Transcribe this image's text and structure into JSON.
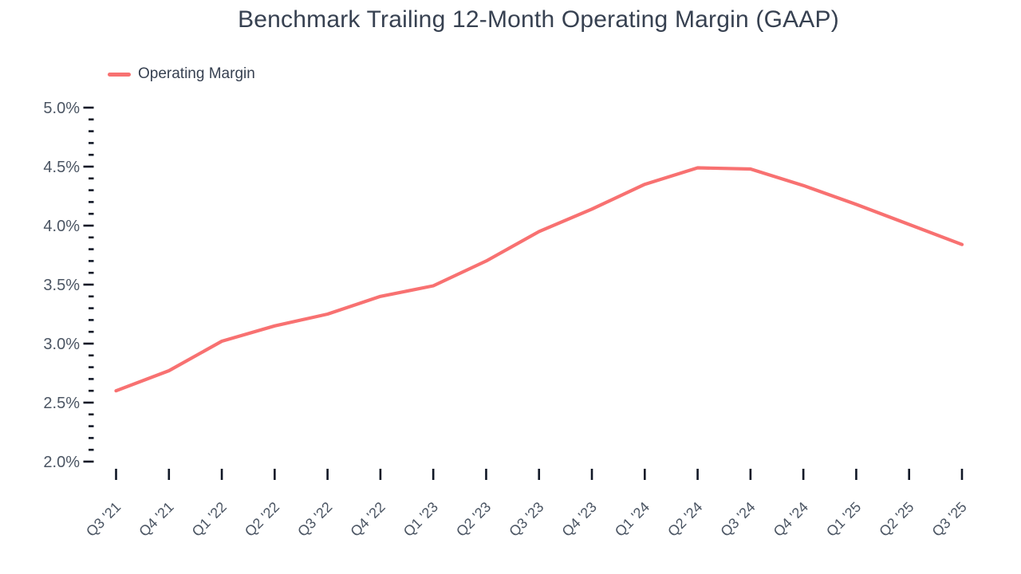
{
  "chart_data": {
    "type": "line",
    "title": "Benchmark Trailing 12-Month Operating Margin (GAAP)",
    "legend_position": "top-left",
    "grid": false,
    "categories": [
      "Q3 '21",
      "Q4 '21",
      "Q1 '22",
      "Q2 '22",
      "Q3 '22",
      "Q4 '22",
      "Q1 '23",
      "Q2 '23",
      "Q3 '23",
      "Q4 '23",
      "Q1 '24",
      "Q2 '24",
      "Q3 '24",
      "Q4 '24",
      "Q1 '25",
      "Q2 '25",
      "Q3 '25"
    ],
    "series": [
      {
        "name": "Operating Margin",
        "values": [
          2.6,
          2.77,
          3.02,
          3.15,
          3.25,
          3.4,
          3.49,
          3.7,
          3.95,
          4.14,
          4.35,
          4.49,
          4.48,
          4.34,
          4.18,
          4.01,
          3.84
        ],
        "unit": "%"
      }
    ],
    "ylim": [
      2.0,
      5.0
    ],
    "y_ticks": [
      {
        "value": 5.0,
        "label": "5.0%"
      },
      {
        "value": 4.5,
        "label": "4.5%"
      },
      {
        "value": 4.0,
        "label": "4.0%"
      },
      {
        "value": 3.5,
        "label": "3.5%"
      },
      {
        "value": 3.0,
        "label": "3.0%"
      },
      {
        "value": 2.5,
        "label": "2.5%"
      },
      {
        "value": 2.0,
        "label": "2.0%"
      }
    ],
    "y_minor_ticks_per_gap": 4,
    "colors": {
      "line": "#f87171",
      "tick_mark": "#111827",
      "axis_label": "#4b5563",
      "title": "#374151"
    }
  },
  "legend": {
    "label": "Operating Margin"
  }
}
